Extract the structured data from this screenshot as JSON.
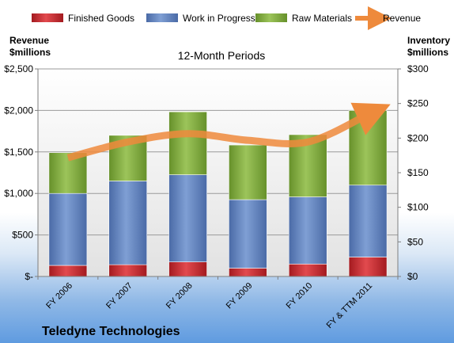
{
  "chart_data": {
    "type": "bar",
    "stacked": true,
    "title": "12-Month Periods",
    "company": "Teledyne Technologies",
    "categories": [
      "FY 2006",
      "FY 2007",
      "FY 2008",
      "FY 2009",
      "FY 2010",
      "FY & TTM 2011"
    ],
    "left_axis": {
      "label_line1": "Revenue",
      "label_line2": "$millions",
      "range": [
        0,
        2500
      ],
      "ticks": [
        0,
        500,
        1000,
        1500,
        2000,
        2500
      ],
      "tick_labels": [
        "$-",
        "$500",
        "$1,000",
        "$1,500",
        "$2,000",
        "$2,500"
      ]
    },
    "right_axis": {
      "label_line1": "Inventory",
      "label_line2": "$millions",
      "range": [
        0,
        300
      ],
      "ticks": [
        0,
        50,
        100,
        150,
        200,
        250,
        300
      ],
      "tick_labels": [
        "$0",
        "$50",
        "$100",
        "$150",
        "$200",
        "$250",
        "$300"
      ]
    },
    "series": [
      {
        "name": "Finished Goods",
        "axis": "right",
        "color": "#c0262b",
        "values": [
          16,
          17,
          21,
          12,
          18,
          28
        ]
      },
      {
        "name": "Work in Progress",
        "axis": "right",
        "color": "#5b7fbf",
        "values": [
          104,
          121,
          126,
          99,
          97,
          104
        ]
      },
      {
        "name": "Raw Materials",
        "axis": "right",
        "color": "#7aa636",
        "values": [
          59,
          66,
          91,
          79,
          90,
          108
        ]
      }
    ],
    "line_series": {
      "name": "Revenue",
      "axis": "left",
      "color": "#ee8a3c",
      "values": [
        1430,
        1620,
        1720,
        1640,
        1620,
        1950
      ]
    },
    "legend_position": "top",
    "grid": true
  }
}
